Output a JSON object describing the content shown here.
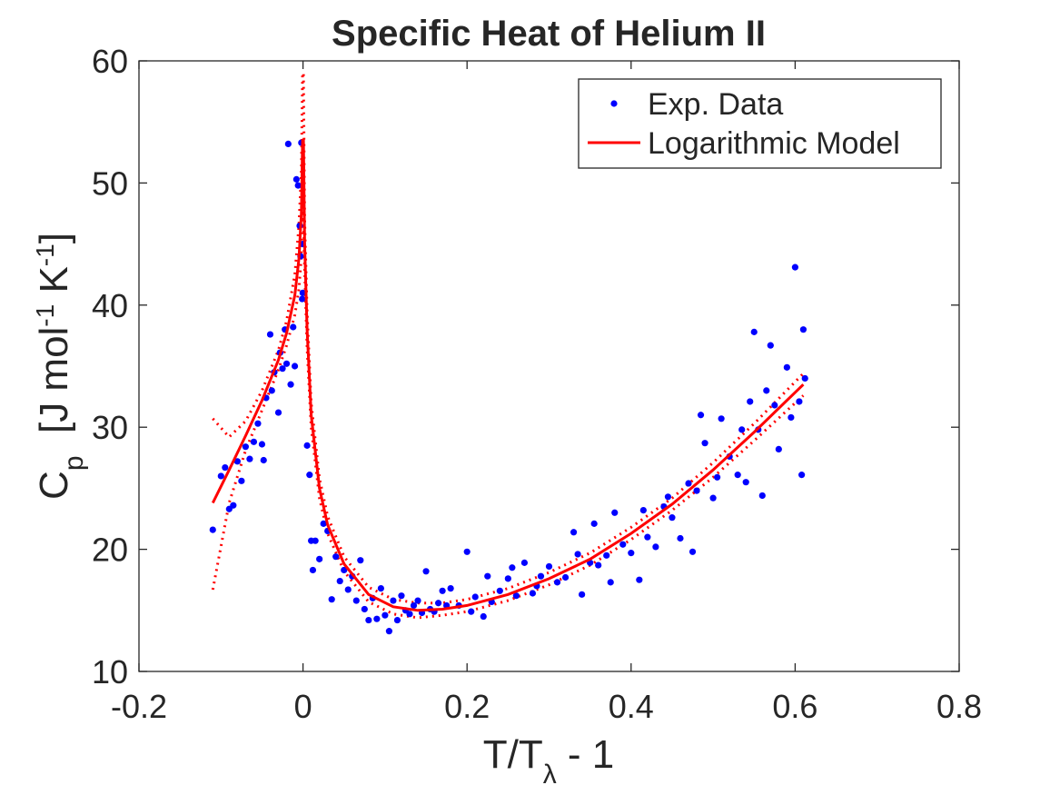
{
  "chart_data": {
    "type": "scatter-fit",
    "title": "Specific Heat of Helium II",
    "xlabel_parts": [
      "T/T",
      "λ",
      " - 1"
    ],
    "xlabel_styles": [
      "normal",
      "sub",
      "normal"
    ],
    "ylabel_parts": [
      "C",
      "p",
      "  [J mol",
      "-1",
      " K",
      "-1",
      "]"
    ],
    "ylabel_styles": [
      "normal",
      "sub",
      "normal",
      "sup",
      "normal",
      "sup",
      "normal"
    ],
    "xlim": [
      -0.2,
      0.8
    ],
    "xticks": [
      -0.2,
      0,
      0.2,
      0.4,
      0.6,
      0.8
    ],
    "ylim": [
      10,
      60
    ],
    "yticks": [
      10,
      20,
      30,
      40,
      50,
      60
    ],
    "legend": "upper right",
    "series": [
      {
        "name": "Exp. Data",
        "color": "#0000ff",
        "style": "markers",
        "x": [
          -0.11,
          -0.1,
          -0.095,
          -0.09,
          -0.085,
          -0.08,
          -0.075,
          -0.07,
          -0.065,
          -0.06,
          -0.055,
          -0.05,
          -0.048,
          -0.045,
          -0.04,
          -0.038,
          -0.035,
          -0.03,
          -0.028,
          -0.025,
          -0.022,
          -0.02,
          -0.018,
          -0.015,
          -0.012,
          -0.01,
          -0.008,
          -0.006,
          -0.004,
          -0.003,
          -0.002,
          -0.001,
          -0.0005,
          -0.0003,
          0.005,
          0.008,
          0.01,
          0.012,
          0.015,
          0.02,
          0.025,
          0.03,
          0.035,
          0.04,
          0.045,
          0.05,
          0.055,
          0.06,
          0.065,
          0.07,
          0.075,
          0.08,
          0.085,
          0.09,
          0.095,
          0.1,
          0.105,
          0.11,
          0.115,
          0.12,
          0.125,
          0.13,
          0.135,
          0.14,
          0.145,
          0.15,
          0.155,
          0.16,
          0.165,
          0.17,
          0.175,
          0.18,
          0.19,
          0.2,
          0.205,
          0.21,
          0.22,
          0.225,
          0.23,
          0.24,
          0.25,
          0.255,
          0.26,
          0.27,
          0.28,
          0.285,
          0.29,
          0.3,
          0.31,
          0.32,
          0.33,
          0.335,
          0.34,
          0.35,
          0.355,
          0.36,
          0.37,
          0.375,
          0.38,
          0.39,
          0.4,
          0.41,
          0.415,
          0.42,
          0.43,
          0.44,
          0.445,
          0.45,
          0.46,
          0.47,
          0.475,
          0.48,
          0.485,
          0.49,
          0.5,
          0.505,
          0.51,
          0.52,
          0.53,
          0.535,
          0.54,
          0.545,
          0.55,
          0.555,
          0.56,
          0.565,
          0.57,
          0.575,
          0.58,
          0.59,
          0.595,
          0.6,
          0.605,
          0.608,
          0.61,
          0.612
        ],
        "values": [
          21.6,
          26.0,
          26.7,
          23.3,
          23.6,
          27.2,
          25.6,
          28.4,
          27.4,
          28.8,
          30.3,
          28.6,
          27.3,
          32.4,
          37.6,
          33.0,
          34.5,
          31.2,
          36.1,
          34.8,
          38.0,
          35.2,
          53.2,
          33.5,
          38.2,
          35.0,
          50.3,
          49.8,
          46.5,
          44.0,
          53.3,
          40.5,
          45.0,
          41.0,
          28.5,
          26.1,
          20.7,
          18.3,
          20.7,
          19.2,
          22.1,
          21.5,
          15.9,
          19.4,
          17.4,
          18.3,
          16.7,
          17.8,
          15.8,
          19.1,
          15.1,
          14.2,
          16.0,
          14.3,
          16.8,
          14.6,
          13.3,
          15.8,
          14.2,
          16.2,
          15.0,
          14.7,
          15.4,
          15.8,
          14.8,
          18.2,
          15.1,
          14.9,
          15.6,
          16.6,
          15.4,
          16.8,
          15.4,
          19.8,
          14.9,
          16.1,
          14.5,
          17.8,
          15.7,
          16.6,
          17.6,
          18.5,
          16.2,
          18.9,
          16.4,
          17.0,
          17.8,
          18.6,
          17.3,
          17.7,
          21.4,
          19.6,
          16.3,
          18.9,
          22.1,
          18.7,
          19.5,
          17.3,
          23.0,
          20.4,
          19.7,
          17.5,
          23.2,
          21.0,
          20.2,
          23.5,
          24.3,
          22.6,
          20.9,
          25.4,
          19.8,
          24.8,
          31.0,
          28.7,
          24.2,
          25.9,
          30.7,
          27.6,
          26.1,
          29.8,
          25.5,
          32.1,
          37.8,
          29.8,
          24.4,
          33.0,
          36.7,
          31.8,
          28.2,
          34.9,
          30.8,
          43.1,
          32.1,
          26.1,
          38.0,
          34.0
        ]
      },
      {
        "name": "Logarithmic Model",
        "color": "#ff0000",
        "style": "line",
        "x": [
          -0.11,
          -0.09,
          -0.07,
          -0.05,
          -0.03,
          -0.02,
          -0.01,
          -0.005,
          -0.002,
          -0.0005,
          0.0005,
          0.002,
          0.005,
          0.01,
          0.02,
          0.03,
          0.05,
          0.08,
          0.11,
          0.14,
          0.17,
          0.2,
          0.25,
          0.3,
          0.35,
          0.4,
          0.45,
          0.5,
          0.55,
          0.61
        ],
        "values": [
          23.8,
          26.5,
          29.3,
          32.2,
          35.5,
          37.7,
          40.8,
          43.8,
          47.5,
          53.5,
          53.5,
          45,
          38,
          31,
          25,
          22,
          18.8,
          16.3,
          15.3,
          15.0,
          15.1,
          15.4,
          16.3,
          17.6,
          19.2,
          21.3,
          23.7,
          26.5,
          29.6,
          33.5
        ]
      }
    ],
    "bounds": {
      "color": "#ff0000",
      "x": [
        -0.11,
        -0.09,
        -0.07,
        -0.05,
        -0.03,
        -0.02,
        -0.01,
        -0.005,
        -0.002,
        -0.0005,
        0.0005,
        0.002,
        0.005,
        0.01,
        0.02,
        0.03,
        0.05,
        0.08,
        0.11,
        0.14,
        0.17,
        0.2,
        0.25,
        0.3,
        0.35,
        0.4,
        0.45,
        0.5,
        0.55,
        0.61
      ],
      "upper": [
        30.7,
        29.2,
        30.5,
        33,
        36.3,
        38.7,
        42.5,
        46.5,
        51,
        59,
        59,
        47,
        39.5,
        32,
        25.8,
        22.7,
        19.4,
        16.9,
        15.9,
        15.6,
        15.6,
        15.9,
        16.8,
        18.1,
        19.7,
        21.8,
        24.2,
        27.1,
        30.3,
        34.4
      ],
      "lower": [
        16.7,
        23.8,
        28.1,
        31.4,
        34.7,
        36.7,
        39.2,
        41.3,
        44,
        48,
        48,
        43,
        36.5,
        30,
        24.2,
        21.3,
        18.2,
        15.7,
        14.7,
        14.4,
        14.6,
        14.9,
        15.8,
        17.1,
        18.7,
        20.8,
        23.2,
        25.9,
        28.9,
        32.6
      ]
    }
  }
}
